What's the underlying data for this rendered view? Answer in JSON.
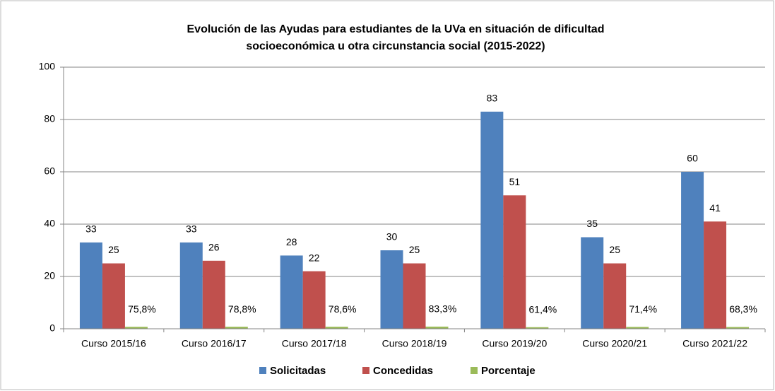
{
  "chart_data": {
    "type": "bar",
    "title": [
      "Evolución de las Ayudas para estudiantes de la UVa en situación de dificultad",
      "socioeconómica u otra circunstancia social (2015-2022)"
    ],
    "categories": [
      "Curso 2015/16",
      "Curso 2016/17",
      "Curso 2017/18",
      "Curso 2018/19",
      "Curso 2019/20",
      "Curso 2020/21",
      "Curso 2021/22"
    ],
    "series": [
      {
        "name": "Solicitadas",
        "color": "#4f81bd",
        "values": [
          33,
          33,
          28,
          30,
          83,
          35,
          60
        ]
      },
      {
        "name": "Concedidas",
        "color": "#c0504d",
        "values": [
          25,
          26,
          22,
          25,
          51,
          25,
          41
        ]
      },
      {
        "name": "Porcentaje",
        "color": "#9bbb59",
        "values": [
          0.758,
          0.788,
          0.786,
          0.833,
          0.614,
          0.714,
          0.683
        ],
        "value_labels": [
          "75,8%",
          "78,8%",
          "78,6%",
          "83,3%",
          "61,4%",
          "71,4%",
          "68,3%"
        ]
      }
    ],
    "ylim": [
      0,
      100
    ],
    "yticks": [
      0,
      20,
      40,
      60,
      80,
      100
    ],
    "grid": true,
    "legend": "bottom"
  }
}
